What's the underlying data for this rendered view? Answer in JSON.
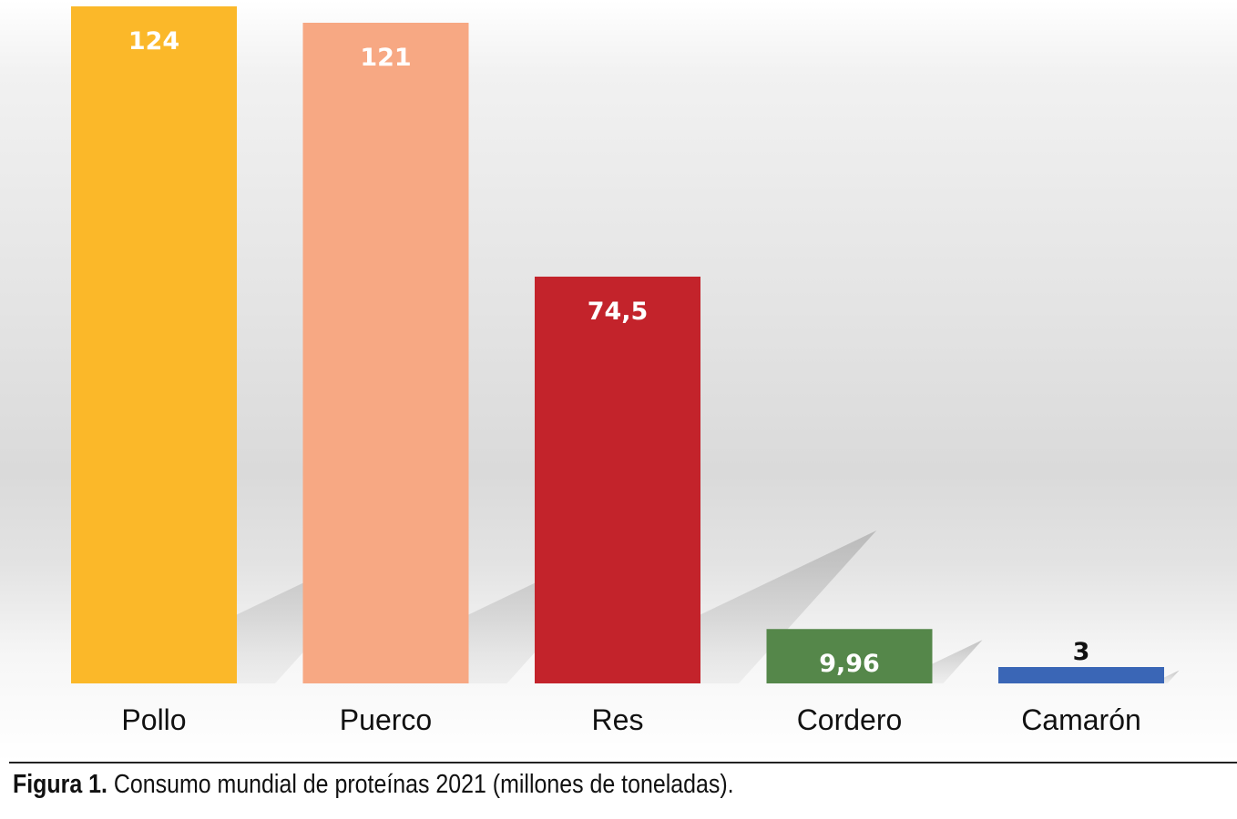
{
  "caption": {
    "label": "Figura 1.",
    "text": "Consumo mundial de proteínas 2021 (millones de toneladas)."
  },
  "chart_data": {
    "type": "bar",
    "categories": [
      "Pollo",
      "Puerco",
      "Res",
      "Cordero",
      "Camarón"
    ],
    "values": [
      124,
      121,
      74.5,
      9.96,
      3
    ],
    "value_labels": [
      "124",
      "121",
      "74,5",
      "9,96",
      "3"
    ],
    "colors": [
      "#fbb829",
      "#f7a883",
      "#c3232b",
      "#55874a",
      "#3a66b6"
    ],
    "label_colors": [
      "#ffffff",
      "#ffffff",
      "#ffffff",
      "#ffffff",
      "#111111"
    ],
    "ylim": [
      0,
      124
    ],
    "grid": false,
    "legend": "none",
    "data_labels": "inside-top"
  }
}
